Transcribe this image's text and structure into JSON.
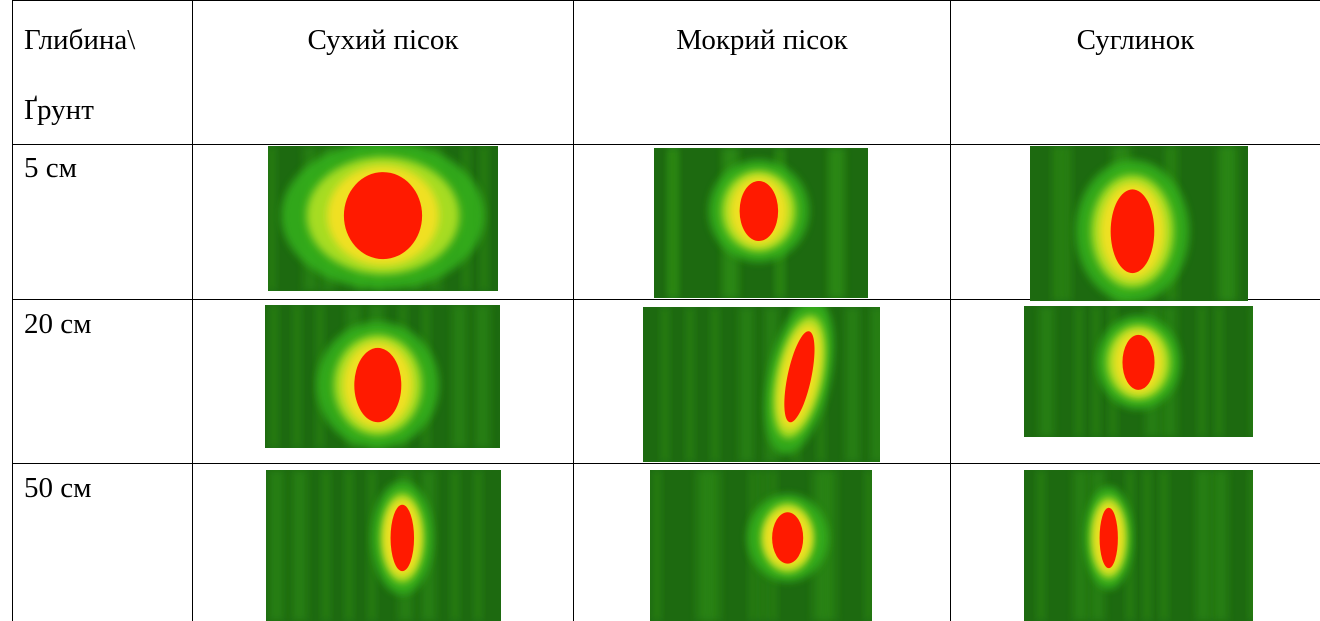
{
  "table": {
    "corner": [
      "Глибина\\",
      "Ґрунт"
    ],
    "columns": [
      "Сухий пісок",
      "Мокрий пісок",
      "Суглинок"
    ],
    "rows": [
      "5 см",
      "20 см",
      "50 см"
    ]
  }
}
